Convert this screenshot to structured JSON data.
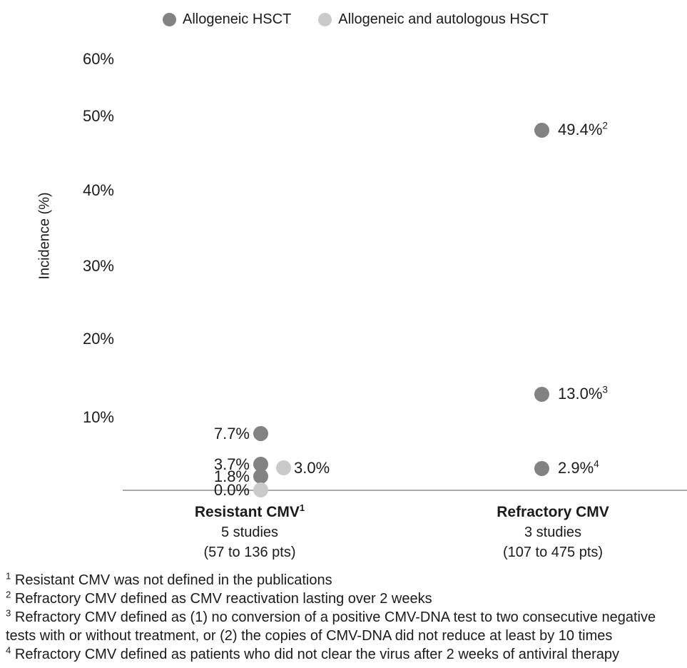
{
  "chart_data": {
    "type": "scatter",
    "title": "",
    "xlabel": "",
    "ylabel": "Incidence (%)",
    "ylim": [
      0,
      60
    ],
    "yticks": [
      "60%",
      "50%",
      "40%",
      "30%",
      "20%",
      "10%"
    ],
    "grid": false,
    "legend_position": "top",
    "colors": {
      "allogeneic": "#828282",
      "allogeneic_autologous": "#cacaca",
      "axis_line": "#a9a9a9"
    },
    "categories": [
      {
        "title": "Resistant CMV",
        "title_footnote": "1",
        "studies": "5 studies",
        "patients": "(57 to 136 pts)"
      },
      {
        "title": "Refractory CMV",
        "title_footnote": "",
        "studies": "3 studies",
        "patients": "(107 to 475 pts)"
      }
    ],
    "series": [
      {
        "name": "Allogeneic HSCT",
        "color": "#828282",
        "points": [
          {
            "category": "Resistant CMV",
            "value": 7.7,
            "label": "7.7%",
            "footnote": ""
          },
          {
            "category": "Resistant CMV",
            "value": 3.7,
            "label": "3.7%",
            "footnote": ""
          },
          {
            "category": "Resistant CMV",
            "value": 1.8,
            "label": "1.8%",
            "footnote": ""
          },
          {
            "category": "Refractory CMV",
            "value": 49.4,
            "label": "49.4%",
            "footnote": "2"
          },
          {
            "category": "Refractory CMV",
            "value": 13.0,
            "label": "13.0%",
            "footnote": "3"
          },
          {
            "category": "Refractory CMV",
            "value": 2.9,
            "label": "2.9%",
            "footnote": "4"
          }
        ]
      },
      {
        "name": "Allogeneic and autologous HSCT",
        "color": "#cacaca",
        "points": [
          {
            "category": "Resistant CMV",
            "value": 0.0,
            "label": "0.0%",
            "footnote": ""
          },
          {
            "category": "Resistant CMV",
            "value": 3.0,
            "label": "3.0%",
            "footnote": ""
          }
        ]
      }
    ]
  },
  "footnotes": [
    {
      "marker": "1",
      "text": "Resistant CMV was not defined in the publications"
    },
    {
      "marker": "2",
      "text": "Refractory CMV defined as CMV reactivation lasting over 2 weeks"
    },
    {
      "marker": "3",
      "text": "Refractory CMV defined as (1) no conversion of a positive CMV-DNA test to two consecutive negative tests with or without treatment, or (2) the copies of CMV-DNA did not reduce at least by 10 times"
    },
    {
      "marker": "4",
      "text": "Refractory CMV defined as patients who did not clear the virus after 2 weeks of antiviral therapy"
    }
  ]
}
